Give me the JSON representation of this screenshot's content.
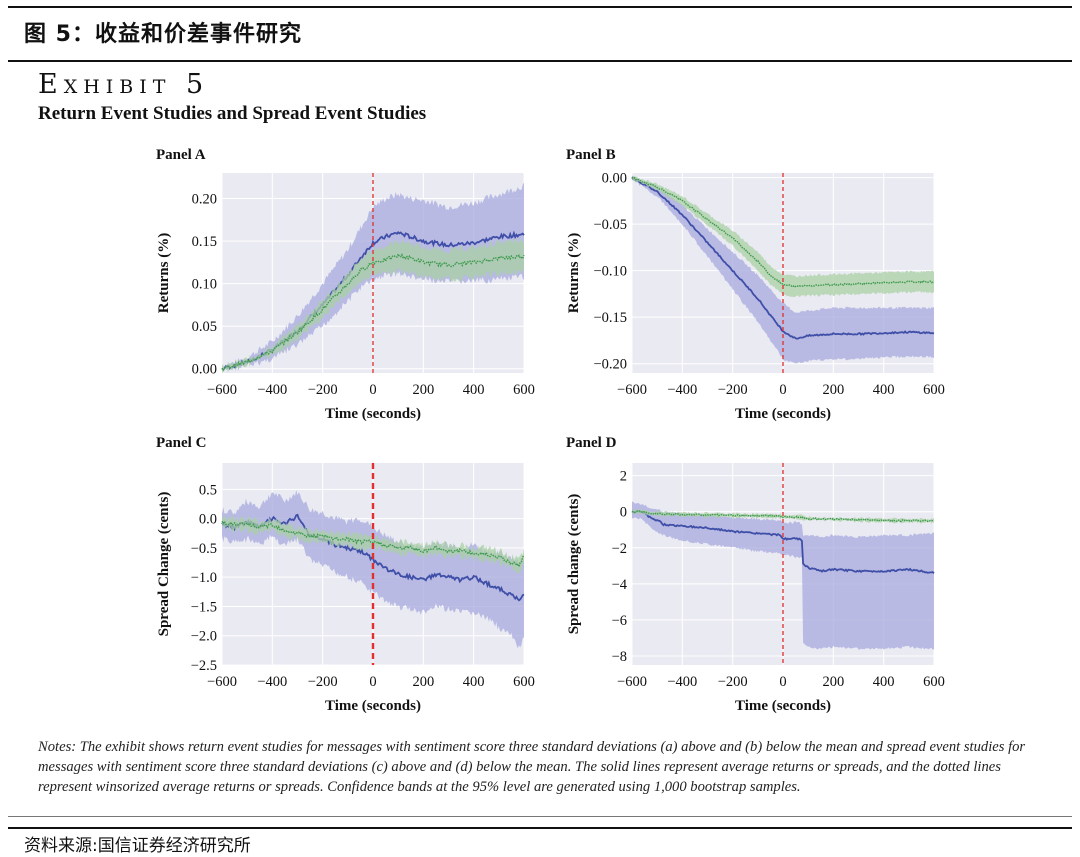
{
  "header": {
    "figure_title": "图 5：收益和价差事件研究",
    "exhibit_label": "Exhibit 5",
    "subtitle": "Return Event Studies and Spread Event Studies"
  },
  "footer": {
    "notes": "Notes: The exhibit shows return event studies for messages with sentiment score three standard deviations (a) above and (b) below the mean and spread event studies for messages with sentiment score three standard deviations (c) above and (d) below the mean. The solid lines represent average returns or spreads, and the dotted lines represent winsorized average returns or spreads. Confidence bands at the 95% level are generated using 1,000 bootstrap samples.",
    "source": "资料来源:国信证券经济研究所"
  },
  "colors": {
    "panel_bg": "#eaeaf2",
    "grid": "#ffffff",
    "blue_line": "#3f4fa8",
    "blue_band": "#a7a9de",
    "green_line": "#3f9a4e",
    "green_band": "#a9d0a4",
    "event_line": "#e0312d"
  },
  "chart_data": [
    {
      "id": "A",
      "type": "line",
      "title": "Panel A",
      "xlabel": "Time (seconds)",
      "ylabel": "Returns (%)",
      "xlim": [
        -600,
        600
      ],
      "ylim": [
        -0.005,
        0.23
      ],
      "xticks": [
        -600,
        -400,
        -200,
        0,
        200,
        400,
        600
      ],
      "xtick_labels": [
        "−600",
        "−400",
        "−200",
        "0",
        "200",
        "400",
        "600"
      ],
      "yticks": [
        0.0,
        0.05,
        0.1,
        0.15,
        0.2
      ],
      "ytick_labels": [
        "0.00",
        "0.05",
        "0.10",
        "0.15",
        "0.20"
      ],
      "event_x": 0,
      "event_line_style": "dashed-thin",
      "x": [
        -600,
        -500,
        -400,
        -300,
        -200,
        -100,
        -50,
        0,
        50,
        100,
        150,
        200,
        300,
        400,
        500,
        600
      ],
      "series": [
        {
          "name": "average",
          "color": "blue",
          "style": "solid",
          "values": [
            0.0,
            0.008,
            0.022,
            0.045,
            0.075,
            0.11,
            0.13,
            0.148,
            0.155,
            0.16,
            0.155,
            0.15,
            0.145,
            0.148,
            0.155,
            0.158
          ],
          "band_low": [
            -0.002,
            0.003,
            0.012,
            0.028,
            0.05,
            0.08,
            0.095,
            0.105,
            0.11,
            0.112,
            0.108,
            0.105,
            0.102,
            0.103,
            0.105,
            0.108
          ],
          "band_high": [
            0.002,
            0.013,
            0.032,
            0.062,
            0.1,
            0.14,
            0.165,
            0.19,
            0.2,
            0.205,
            0.2,
            0.198,
            0.19,
            0.195,
            0.205,
            0.215
          ]
        },
        {
          "name": "winsorized",
          "color": "green",
          "style": "dotted",
          "values": [
            0.0,
            0.008,
            0.021,
            0.043,
            0.07,
            0.1,
            0.115,
            0.125,
            0.128,
            0.133,
            0.13,
            0.125,
            0.122,
            0.125,
            0.13,
            0.132
          ],
          "band_low": [
            -0.002,
            0.005,
            0.016,
            0.035,
            0.06,
            0.09,
            0.102,
            0.11,
            0.112,
            0.115,
            0.112,
            0.108,
            0.105,
            0.108,
            0.112,
            0.115
          ],
          "band_high": [
            0.002,
            0.011,
            0.026,
            0.051,
            0.08,
            0.11,
            0.128,
            0.14,
            0.144,
            0.15,
            0.148,
            0.142,
            0.139,
            0.142,
            0.148,
            0.15
          ]
        }
      ]
    },
    {
      "id": "B",
      "type": "line",
      "title": "Panel B",
      "xlabel": "Time (seconds)",
      "ylabel": "Returns (%)",
      "xlim": [
        -600,
        600
      ],
      "ylim": [
        -0.21,
        0.005
      ],
      "xticks": [
        -600,
        -400,
        -200,
        0,
        200,
        400,
        600
      ],
      "xtick_labels": [
        "−600",
        "−400",
        "−200",
        "0",
        "200",
        "400",
        "600"
      ],
      "yticks": [
        0.0,
        -0.05,
        -0.1,
        -0.15,
        -0.2
      ],
      "ytick_labels": [
        "0.00",
        "−0.05",
        "−0.10",
        "−0.15",
        "−0.20"
      ],
      "event_x": 0,
      "event_line_style": "dashed-thin",
      "x": [
        -600,
        -500,
        -400,
        -300,
        -200,
        -100,
        -50,
        0,
        50,
        100,
        200,
        300,
        400,
        500,
        600
      ],
      "series": [
        {
          "name": "average",
          "color": "blue",
          "style": "solid",
          "values": [
            0.0,
            -0.015,
            -0.04,
            -0.07,
            -0.1,
            -0.13,
            -0.148,
            -0.165,
            -0.173,
            -0.17,
            -0.168,
            -0.168,
            -0.167,
            -0.166,
            -0.167
          ],
          "band_low": [
            -0.002,
            -0.02,
            -0.05,
            -0.085,
            -0.12,
            -0.155,
            -0.175,
            -0.195,
            -0.2,
            -0.197,
            -0.195,
            -0.195,
            -0.193,
            -0.192,
            -0.193
          ],
          "band_high": [
            0.002,
            -0.01,
            -0.03,
            -0.055,
            -0.08,
            -0.105,
            -0.12,
            -0.135,
            -0.145,
            -0.143,
            -0.14,
            -0.14,
            -0.14,
            -0.14,
            -0.14
          ]
        },
        {
          "name": "winsorized",
          "color": "green",
          "style": "dotted",
          "values": [
            0.0,
            -0.01,
            -0.025,
            -0.045,
            -0.065,
            -0.09,
            -0.105,
            -0.115,
            -0.117,
            -0.116,
            -0.115,
            -0.114,
            -0.113,
            -0.112,
            -0.112
          ],
          "band_low": [
            -0.002,
            -0.013,
            -0.03,
            -0.051,
            -0.073,
            -0.1,
            -0.115,
            -0.126,
            -0.128,
            -0.127,
            -0.126,
            -0.125,
            -0.124,
            -0.123,
            -0.123
          ],
          "band_high": [
            0.002,
            -0.007,
            -0.02,
            -0.039,
            -0.057,
            -0.08,
            -0.095,
            -0.104,
            -0.106,
            -0.105,
            -0.104,
            -0.103,
            -0.102,
            -0.101,
            -0.101
          ]
        }
      ]
    },
    {
      "id": "C",
      "type": "line",
      "title": "Panel C",
      "xlabel": "Time (seconds)",
      "ylabel": "Spread Change (cents)",
      "xlim": [
        -600,
        600
      ],
      "ylim": [
        -2.5,
        0.95
      ],
      "xticks": [
        -600,
        -400,
        -200,
        0,
        200,
        400,
        600
      ],
      "xtick_labels": [
        "−600",
        "−400",
        "−200",
        "0",
        "200",
        "400",
        "600"
      ],
      "yticks": [
        0.5,
        0.0,
        -0.5,
        -1.0,
        -1.5,
        -2.0,
        -2.5
      ],
      "ytick_labels": [
        "0.5",
        "0.0",
        "−0.5",
        "−1.0",
        "−1.5",
        "−2.0",
        "−2.5"
      ],
      "event_x": 0,
      "event_line_style": "dashed-thick",
      "x": [
        -600,
        -550,
        -500,
        -450,
        -400,
        -350,
        -300,
        -250,
        -200,
        -150,
        -100,
        -50,
        0,
        50,
        100,
        150,
        200,
        250,
        300,
        350,
        400,
        450,
        500,
        550,
        580,
        600
      ],
      "series": [
        {
          "name": "average",
          "color": "blue",
          "style": "solid",
          "values": [
            -0.1,
            -0.15,
            -0.05,
            -0.15,
            0.0,
            -0.1,
            0.05,
            -0.3,
            -0.35,
            -0.45,
            -0.5,
            -0.55,
            -0.7,
            -0.85,
            -0.95,
            -1.0,
            -1.05,
            -0.95,
            -1.0,
            -1.05,
            -1.0,
            -1.1,
            -1.2,
            -1.3,
            -1.4,
            -1.3
          ],
          "band_low": [
            -0.35,
            -0.4,
            -0.35,
            -0.45,
            -0.3,
            -0.45,
            -0.35,
            -0.7,
            -0.8,
            -0.9,
            -1.0,
            -1.1,
            -1.25,
            -1.4,
            -1.5,
            -1.55,
            -1.6,
            -1.5,
            -1.55,
            -1.6,
            -1.6,
            -1.7,
            -1.85,
            -2.0,
            -2.2,
            -2.05
          ],
          "band_high": [
            0.15,
            0.1,
            0.3,
            0.2,
            0.45,
            0.3,
            0.45,
            0.15,
            0.1,
            0.0,
            -0.05,
            0.0,
            -0.15,
            -0.3,
            -0.4,
            -0.45,
            -0.5,
            -0.4,
            -0.45,
            -0.5,
            -0.45,
            -0.55,
            -0.6,
            -0.65,
            -0.75,
            -0.65
          ]
        },
        {
          "name": "winsorized",
          "color": "green",
          "style": "dotted",
          "values": [
            -0.05,
            -0.1,
            -0.1,
            -0.15,
            -0.1,
            -0.2,
            -0.25,
            -0.3,
            -0.3,
            -0.35,
            -0.35,
            -0.4,
            -0.4,
            -0.45,
            -0.5,
            -0.5,
            -0.55,
            -0.5,
            -0.55,
            -0.55,
            -0.6,
            -0.6,
            -0.65,
            -0.75,
            -0.8,
            -0.65
          ],
          "band_low": [
            -0.15,
            -0.2,
            -0.2,
            -0.25,
            -0.2,
            -0.3,
            -0.35,
            -0.4,
            -0.4,
            -0.45,
            -0.45,
            -0.5,
            -0.5,
            -0.55,
            -0.6,
            -0.6,
            -0.65,
            -0.6,
            -0.65,
            -0.65,
            -0.7,
            -0.7,
            -0.75,
            -0.85,
            -0.9,
            -0.75
          ],
          "band_high": [
            0.05,
            0.0,
            0.0,
            -0.05,
            0.0,
            -0.1,
            -0.15,
            -0.2,
            -0.2,
            -0.25,
            -0.25,
            -0.3,
            -0.3,
            -0.35,
            -0.4,
            -0.4,
            -0.45,
            -0.4,
            -0.45,
            -0.45,
            -0.5,
            -0.5,
            -0.55,
            -0.65,
            -0.7,
            -0.55
          ]
        }
      ]
    },
    {
      "id": "D",
      "type": "line",
      "title": "Panel D",
      "xlabel": "Time (seconds)",
      "ylabel": "Spread change (cents)",
      "xlim": [
        -600,
        600
      ],
      "ylim": [
        -8.5,
        2.7
      ],
      "xticks": [
        -600,
        -400,
        -200,
        0,
        200,
        400,
        600
      ],
      "xtick_labels": [
        "−600",
        "−400",
        "−200",
        "0",
        "200",
        "400",
        "600"
      ],
      "yticks": [
        2,
        0,
        -2,
        -4,
        -6,
        -8
      ],
      "ytick_labels": [
        "2",
        "0",
        "−2",
        "−4",
        "−6",
        "−8"
      ],
      "event_x": 0,
      "event_line_style": "dashed-thin",
      "x": [
        -600,
        -560,
        -520,
        -490,
        -480,
        -400,
        -300,
        -200,
        -100,
        -10,
        0,
        60,
        79,
        80,
        100,
        150,
        200,
        300,
        400,
        500,
        600
      ],
      "series": [
        {
          "name": "average",
          "color": "blue",
          "style": "solid",
          "values": [
            0.0,
            0.0,
            -0.4,
            -0.5,
            -0.7,
            -0.8,
            -0.9,
            -1.1,
            -1.2,
            -1.3,
            -1.5,
            -1.5,
            -1.6,
            -2.9,
            -3.1,
            -3.3,
            -3.2,
            -3.3,
            -3.3,
            -3.2,
            -3.4
          ],
          "band_low": [
            -0.3,
            -0.4,
            -1.0,
            -1.2,
            -1.3,
            -1.6,
            -1.8,
            -2.0,
            -2.2,
            -2.3,
            -2.4,
            -2.5,
            -2.6,
            -7.3,
            -7.5,
            -7.6,
            -7.5,
            -7.6,
            -7.6,
            -7.5,
            -7.6
          ],
          "band_high": [
            0.5,
            0.4,
            0.2,
            0.1,
            0.0,
            -0.1,
            -0.2,
            -0.3,
            -0.4,
            -0.5,
            -0.6,
            -0.6,
            -0.7,
            -1.3,
            -1.3,
            -1.4,
            -1.3,
            -1.4,
            -1.3,
            -1.3,
            -1.2
          ]
        },
        {
          "name": "winsorized",
          "color": "green",
          "style": "dotted",
          "values": [
            0.0,
            0.0,
            -0.1,
            -0.1,
            -0.12,
            -0.15,
            -0.18,
            -0.2,
            -0.22,
            -0.25,
            -0.28,
            -0.3,
            -0.3,
            -0.35,
            -0.38,
            -0.4,
            -0.42,
            -0.45,
            -0.48,
            -0.5,
            -0.5
          ],
          "band_low": [
            -0.1,
            -0.1,
            -0.2,
            -0.2,
            -0.22,
            -0.25,
            -0.28,
            -0.3,
            -0.32,
            -0.35,
            -0.38,
            -0.4,
            -0.4,
            -0.45,
            -0.48,
            -0.5,
            -0.52,
            -0.55,
            -0.58,
            -0.6,
            -0.6
          ],
          "band_high": [
            0.1,
            0.1,
            0.0,
            0.0,
            -0.02,
            -0.05,
            -0.08,
            -0.1,
            -0.12,
            -0.15,
            -0.18,
            -0.2,
            -0.2,
            -0.25,
            -0.28,
            -0.3,
            -0.32,
            -0.35,
            -0.38,
            -0.4,
            -0.4
          ]
        }
      ]
    }
  ]
}
